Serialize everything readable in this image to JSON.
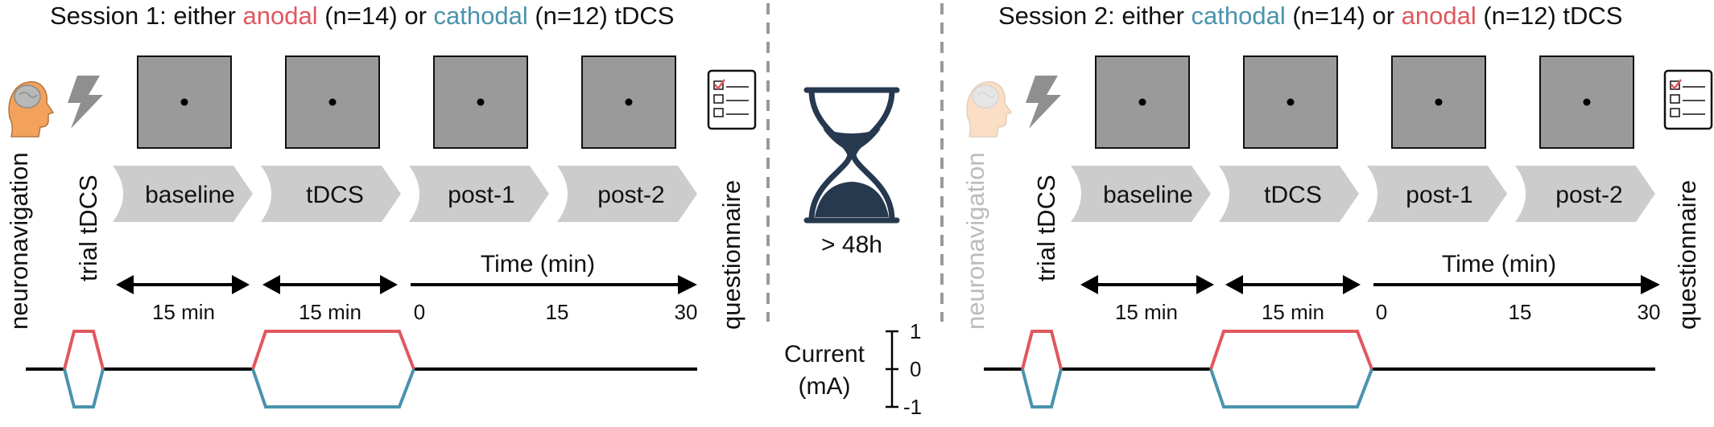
{
  "colors": {
    "anodal": "#e0585e",
    "cathodal": "#4a93ad",
    "phase_fill": "#cccccc",
    "screen_fill": "#9a9a9a",
    "hourglass": "#26394f",
    "bolt": "#8f8f8f",
    "divider": "#9a9a9a"
  },
  "session1": {
    "title_prefix": "Session 1: either ",
    "title_first": "anodal",
    "title_mid1": " (n=14) or ",
    "title_second": "cathodal",
    "title_mid2": " (n=12) tDCS",
    "side_labels": [
      "neuronavigation",
      "trial tDCS",
      "questionnaire"
    ],
    "phases": [
      "baseline",
      "tDCS",
      "post-1",
      "post-2"
    ],
    "durations": [
      "15 min",
      "15 min"
    ],
    "time_label": "Time (min)",
    "time_ticks": [
      "0",
      "15",
      "30"
    ]
  },
  "session2": {
    "title_prefix": "Session 2: either ",
    "title_first": "cathodal",
    "title_mid1": " (n=14) or ",
    "title_second": "anodal",
    "title_mid2": " (n=12) tDCS",
    "side_labels": [
      "neuronavigation",
      "trial tDCS",
      "questionnaire"
    ],
    "phases": [
      "baseline",
      "tDCS",
      "post-1",
      "post-2"
    ],
    "durations": [
      "15 min",
      "15 min"
    ],
    "time_label": "Time (min)",
    "time_ticks": [
      "0",
      "15",
      "30"
    ]
  },
  "washout": {
    "label": "> 48h"
  },
  "current_axis": {
    "label_line1": "Current",
    "label_line2": "(mA)",
    "ticks": [
      "1",
      "0",
      "-1"
    ]
  },
  "icons": [
    "head-icon",
    "lightning-bolt-icon",
    "fixation-screen",
    "checklist-icon",
    "hourglass-icon"
  ]
}
